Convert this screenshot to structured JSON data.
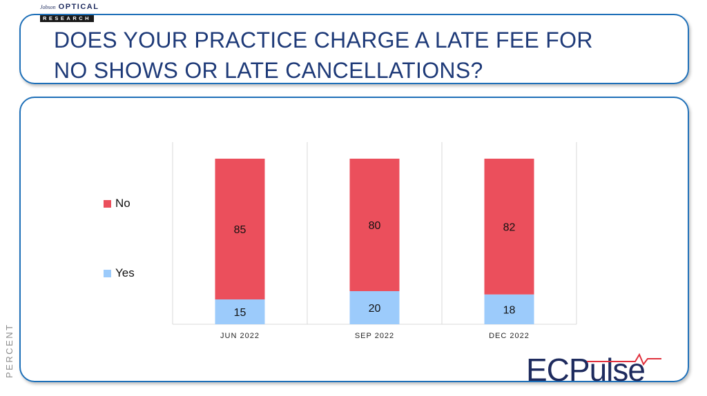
{
  "logo": {
    "script": "Jobson",
    "top": "OPTICAL",
    "bottom": "RESEARCH"
  },
  "title": "DOES YOUR PRACTICE CHARGE A LATE FEE FOR NO SHOWS OR LATE CANCELLATIONS?",
  "side_label": "PERCENT",
  "brand": {
    "text": "ECPulse",
    "wave_color": "#e0303c"
  },
  "colors": {
    "frame": "#1d6fb8",
    "title": "#1e3a78",
    "no": "#eb4f5c",
    "yes": "#9ccbfb"
  },
  "chart_data": {
    "type": "bar",
    "stacked": true,
    "categories": [
      "JUN 2022",
      "SEP 2022",
      "DEC 2022"
    ],
    "series": [
      {
        "name": "Yes",
        "values": [
          15,
          20,
          18
        ],
        "color": "#9ccbfb"
      },
      {
        "name": "No",
        "values": [
          85,
          80,
          82
        ],
        "color": "#eb4f5c"
      }
    ],
    "ylim": [
      0,
      100
    ],
    "grid": false,
    "legend_position": "left",
    "data_labels": true
  }
}
